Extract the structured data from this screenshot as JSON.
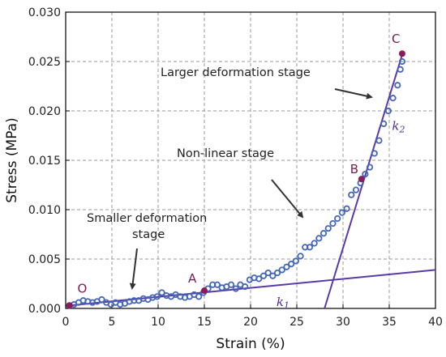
{
  "chart_data": {
    "type": "scatter",
    "xlabel": "Strain (%)",
    "ylabel": "Stress (MPa)",
    "xlim": [
      0,
      40
    ],
    "ylim": [
      0,
      0.03
    ],
    "x_ticks": [
      0,
      5,
      10,
      15,
      20,
      25,
      30,
      35,
      40
    ],
    "y_ticks": [
      0.0,
      0.005,
      0.01,
      0.015,
      0.02,
      0.025,
      0.03
    ],
    "y_tick_labels": [
      "0.000",
      "0.005",
      "0.010",
      "0.015",
      "0.020",
      "0.025",
      "0.030"
    ],
    "grid": true,
    "series": [
      {
        "marker": "open-circle",
        "color": "#4466b8",
        "points": [
          [
            0.4,
            0.0003
          ],
          [
            0.9,
            0.0004
          ],
          [
            1.4,
            0.0006
          ],
          [
            1.9,
            0.0008
          ],
          [
            2.4,
            0.0007
          ],
          [
            2.9,
            0.0006
          ],
          [
            3.4,
            0.0007
          ],
          [
            3.9,
            0.0009
          ],
          [
            4.4,
            0.0006
          ],
          [
            4.9,
            0.0004
          ],
          [
            5.4,
            0.0006
          ],
          [
            5.9,
            0.0004
          ],
          [
            6.4,
            0.0005
          ],
          [
            6.9,
            0.0007
          ],
          [
            7.4,
            0.0008
          ],
          [
            7.9,
            0.0008
          ],
          [
            8.4,
            0.001
          ],
          [
            8.9,
            0.0009
          ],
          [
            9.4,
            0.0011
          ],
          [
            9.9,
            0.0012
          ],
          [
            10.4,
            0.0016
          ],
          [
            10.9,
            0.0013
          ],
          [
            11.4,
            0.0012
          ],
          [
            11.9,
            0.0014
          ],
          [
            12.4,
            0.0012
          ],
          [
            12.9,
            0.0011
          ],
          [
            13.4,
            0.0012
          ],
          [
            13.9,
            0.0014
          ],
          [
            14.4,
            0.0012
          ],
          [
            14.9,
            0.0016
          ],
          [
            15.4,
            0.002
          ],
          [
            15.9,
            0.0024
          ],
          [
            16.4,
            0.0024
          ],
          [
            16.9,
            0.0021
          ],
          [
            17.4,
            0.0022
          ],
          [
            17.9,
            0.0024
          ],
          [
            18.4,
            0.002
          ],
          [
            18.9,
            0.0024
          ],
          [
            19.4,
            0.0022
          ],
          [
            19.9,
            0.0029
          ],
          [
            20.4,
            0.0031
          ],
          [
            20.9,
            0.003
          ],
          [
            21.4,
            0.0033
          ],
          [
            21.9,
            0.0036
          ],
          [
            22.4,
            0.0033
          ],
          [
            22.9,
            0.0036
          ],
          [
            23.4,
            0.0039
          ],
          [
            23.9,
            0.0042
          ],
          [
            24.4,
            0.0045
          ],
          [
            24.9,
            0.0048
          ],
          [
            25.4,
            0.0053
          ],
          [
            25.9,
            0.0062
          ],
          [
            26.4,
            0.0062
          ],
          [
            26.9,
            0.0066
          ],
          [
            27.4,
            0.0071
          ],
          [
            27.9,
            0.0076
          ],
          [
            28.4,
            0.0081
          ],
          [
            28.9,
            0.0086
          ],
          [
            29.4,
            0.0091
          ],
          [
            29.9,
            0.0097
          ],
          [
            30.4,
            0.0101
          ],
          [
            30.9,
            0.0115
          ],
          [
            31.4,
            0.012
          ],
          [
            31.9,
            0.0127
          ],
          [
            32.4,
            0.0136
          ],
          [
            32.9,
            0.0143
          ],
          [
            33.4,
            0.0157
          ],
          [
            33.9,
            0.017
          ],
          [
            34.4,
            0.0187
          ],
          [
            34.9,
            0.02
          ],
          [
            35.4,
            0.0213
          ],
          [
            35.9,
            0.0226
          ],
          [
            36.2,
            0.0242
          ],
          [
            36.4,
            0.025
          ]
        ]
      }
    ],
    "key_points": [
      {
        "label": "O",
        "x": 0.4,
        "y": 0.0003
      },
      {
        "label": "A",
        "x": 15.0,
        "y": 0.0018
      },
      {
        "label": "B",
        "x": 32.0,
        "y": 0.0131
      },
      {
        "label": "C",
        "x": 36.4,
        "y": 0.0258
      }
    ],
    "fit_lines": [
      {
        "label": "k1",
        "from": [
          0.4,
          0.0003
        ],
        "to": [
          40,
          0.0039
        ]
      },
      {
        "label": "k2",
        "from": [
          28.0,
          0.0
        ],
        "to": [
          36.5,
          0.026
        ]
      }
    ],
    "annotations": [
      {
        "text": "Larger deformation stage"
      },
      {
        "text": "Non-linear stage"
      },
      {
        "text_lines": [
          "Smaller deformation",
          "stage"
        ]
      }
    ]
  }
}
